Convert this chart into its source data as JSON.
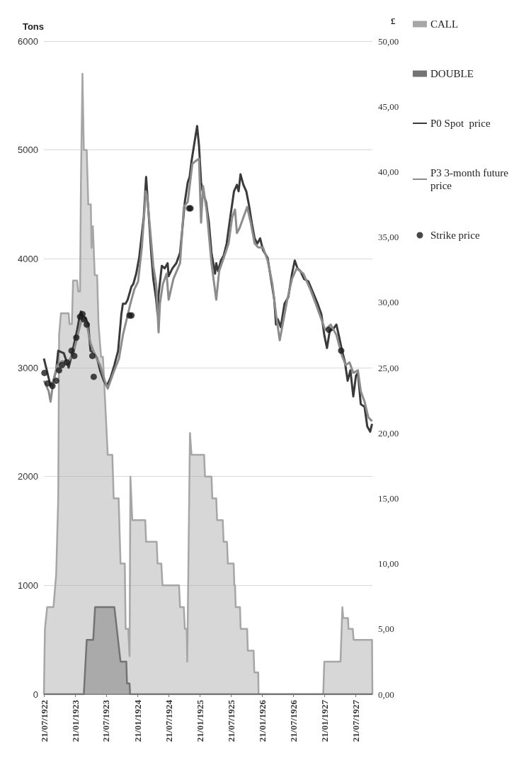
{
  "chart_data": {
    "type": "line",
    "ylabel": "Tons",
    "y2label": "£",
    "grid": "y",
    "legend": "right",
    "xlim": [
      "1922-07-21",
      "1927-10-28"
    ],
    "xticks": [
      {
        "value": "1922-07-21",
        "label": "21/07/1922"
      },
      {
        "value": "1923-01-21",
        "label": "21/01/1923"
      },
      {
        "value": "1923-07-21",
        "label": "21/07/1923"
      },
      {
        "value": "1924-01-21",
        "label": "21/01/1924"
      },
      {
        "value": "1924-07-21",
        "label": "21/07/1924"
      },
      {
        "value": "1925-01-21",
        "label": "21/01/1925"
      },
      {
        "value": "1925-07-21",
        "label": "21/07/1925"
      },
      {
        "value": "1926-01-21",
        "label": "21/01/1926"
      },
      {
        "value": "1926-07-21",
        "label": "21/07/1926"
      },
      {
        "value": "1927-01-21",
        "label": "21/01/1927"
      },
      {
        "value": "1927-07-21",
        "label": "21/07/1927"
      }
    ],
    "ylim": [
      0,
      6000
    ],
    "yticks": [
      0,
      1000,
      2000,
      3000,
      4000,
      5000,
      6000
    ],
    "y2lim": [
      0,
      50
    ],
    "y2ticks": [
      {
        "value": 0,
        "label": "0,00"
      },
      {
        "value": 5,
        "label": "5,00"
      },
      {
        "value": 10,
        "label": "10,00"
      },
      {
        "value": 15,
        "label": "15,00"
      },
      {
        "value": 20,
        "label": "20,00"
      },
      {
        "value": 25,
        "label": "25,00"
      },
      {
        "value": 30,
        "label": "30,00"
      },
      {
        "value": 35,
        "label": "35,00"
      },
      {
        "value": 40,
        "label": "40,00"
      },
      {
        "value": 45,
        "label": "45,00"
      },
      {
        "value": 50,
        "label": "50,00"
      }
    ],
    "series": [
      {
        "name": "CALL",
        "type": "area",
        "color": "#a6a6a6",
        "x": [
          "1922-07-21",
          "1922-07-27",
          "1922-08-09",
          "1922-09-15",
          "1922-10-01",
          "1922-10-13",
          "1922-10-18",
          "1922-10-29",
          "1922-12-13",
          "1922-12-18",
          "1923-01-01",
          "1923-01-08",
          "1923-02-01",
          "1923-02-07",
          "1923-02-18",
          "1923-02-23",
          "1923-03-04",
          "1923-03-12",
          "1923-03-29",
          "1923-04-07",
          "1923-04-22",
          "1923-04-26",
          "1923-05-04",
          "1923-05-15",
          "1923-05-29",
          "1923-06-06",
          "1923-06-21",
          "1923-07-02",
          "1923-07-30",
          "1923-08-26",
          "1923-09-03",
          "1923-10-02",
          "1923-10-13",
          "1923-11-07",
          "1923-11-12",
          "1923-11-27",
          "1923-12-05",
          "1923-12-10",
          "1923-12-21",
          "1924-03-06",
          "1924-03-11",
          "1924-05-12",
          "1924-05-17",
          "1924-06-08",
          "1924-06-15",
          "1924-09-20",
          "1924-09-26",
          "1924-10-18",
          "1924-10-24",
          "1924-11-04",
          "1924-11-07",
          "1924-11-23",
          "1924-12-02",
          "1925-02-14",
          "1925-02-19",
          "1925-03-29",
          "1925-04-03",
          "1925-04-26",
          "1925-05-01",
          "1925-06-03",
          "1925-06-08",
          "1925-06-28",
          "1925-07-03",
          "1925-08-06",
          "1925-08-10",
          "1925-08-14",
          "1925-08-18",
          "1925-09-12",
          "1925-09-16",
          "1925-10-24",
          "1925-10-28",
          "1925-12-01",
          "1925-12-05",
          "1925-12-28",
          "1925-12-30",
          "1927-01-13",
          "1927-01-19",
          "1927-04-24",
          "1927-05-05",
          "1927-05-10",
          "1927-06-07",
          "1927-06-10",
          "1927-07-05",
          "1927-07-10",
          "1927-10-26",
          "1927-10-28"
        ],
        "values": [
          0,
          600,
          800,
          800,
          1100,
          1800,
          3300,
          3500,
          3500,
          3400,
          3400,
          3800,
          3800,
          3700,
          3700,
          4700,
          5700,
          5000,
          5000,
          4500,
          4500,
          4100,
          4300,
          3850,
          3850,
          3400,
          3100,
          3100,
          2200,
          2200,
          1800,
          1800,
          1200,
          1200,
          600,
          600,
          350,
          2000,
          1600,
          1600,
          1400,
          1400,
          1200,
          1200,
          1000,
          1000,
          800,
          800,
          600,
          600,
          300,
          2400,
          2200,
          2200,
          2000,
          2000,
          1800,
          1800,
          1600,
          1600,
          1400,
          1400,
          1200,
          1200,
          1000,
          1000,
          800,
          800,
          600,
          600,
          400,
          400,
          200,
          200,
          0,
          0,
          300,
          300,
          800,
          700,
          700,
          600,
          600,
          500,
          500,
          0
        ]
      },
      {
        "name": "DOUBLE",
        "type": "area",
        "color": "#737373",
        "x": [
          "1922-07-21",
          "1923-03-12",
          "1923-03-29",
          "1923-05-06",
          "1923-05-17",
          "1923-09-07",
          "1923-10-13",
          "1923-11-16",
          "1923-11-20",
          "1923-12-05",
          "1923-12-08",
          "1927-10-28"
        ],
        "values": [
          0,
          0,
          500,
          500,
          800,
          800,
          300,
          300,
          100,
          100,
          0,
          0
        ]
      },
      {
        "name": "P0 Spot  price",
        "axis": "y2",
        "color": "#3a3a3a",
        "x": [
          "1922-07-21",
          "1922-08-07",
          "1922-08-29",
          "1922-09-15",
          "1922-10-01",
          "1922-10-13",
          "1922-11-15",
          "1922-12-13",
          "1922-12-30",
          "1923-01-15",
          "1923-02-01",
          "1923-02-15",
          "1923-02-23",
          "1923-03-07",
          "1923-03-23",
          "1923-04-07",
          "1923-04-20",
          "1923-05-12",
          "1923-05-29",
          "1923-06-15",
          "1923-07-07",
          "1923-07-24",
          "1923-08-15",
          "1923-09-07",
          "1923-09-29",
          "1923-10-18",
          "1923-10-27",
          "1923-11-12",
          "1923-11-24",
          "1923-12-16",
          "1923-12-27",
          "1924-01-13",
          "1924-01-30",
          "1924-02-26",
          "1924-03-11",
          "1924-03-22",
          "1924-04-11",
          "1924-04-22",
          "1924-05-09",
          "1924-05-17",
          "1924-05-23",
          "1924-06-11",
          "1924-06-28",
          "1924-07-15",
          "1924-07-21",
          "1924-08-12",
          "1924-09-04",
          "1924-09-26",
          "1924-10-07",
          "1924-10-24",
          "1924-11-10",
          "1924-11-21",
          "1924-12-02",
          "1924-12-19",
          "1925-01-04",
          "1925-01-15",
          "1925-01-27",
          "1925-02-08",
          "1925-02-25",
          "1925-03-14",
          "1925-03-29",
          "1925-04-19",
          "1925-04-26",
          "1925-05-07",
          "1925-05-23",
          "1925-06-09",
          "1925-06-26",
          "1925-07-17",
          "1925-08-08",
          "1925-08-25",
          "1925-09-04",
          "1925-09-15",
          "1925-10-02",
          "1925-10-19",
          "1925-11-03",
          "1925-11-20",
          "1925-12-07",
          "1925-12-23",
          "1926-01-08",
          "1926-01-25",
          "1926-02-21",
          "1926-03-15",
          "1926-04-01",
          "1926-04-11",
          "1926-04-22",
          "1926-05-09",
          "1926-05-31",
          "1926-06-22",
          "1926-07-14",
          "1926-07-30",
          "1926-08-15",
          "1926-09-01",
          "1926-09-22",
          "1926-10-18",
          "1926-11-19",
          "1926-12-11",
          "1927-01-02",
          "1927-01-19",
          "1927-02-04",
          "1927-02-21",
          "1927-03-09",
          "1927-03-31",
          "1927-04-17",
          "1927-05-03",
          "1927-05-19",
          "1927-06-05",
          "1927-06-21",
          "1927-07-08",
          "1927-07-24",
          "1927-08-04",
          "1927-08-21",
          "1927-09-12",
          "1927-09-28",
          "1927-10-15",
          "1927-10-26"
        ],
        "values": [
          25.7,
          24.8,
          23.6,
          24.0,
          24.8,
          26.3,
          26.1,
          25.0,
          25.9,
          26.9,
          27.9,
          28.9,
          29.3,
          28.9,
          28.8,
          28.3,
          26.3,
          26.1,
          25.7,
          24.8,
          24.0,
          23.6,
          24.2,
          25.2,
          26.3,
          29.1,
          29.9,
          29.9,
          30.2,
          31.2,
          31.4,
          32.2,
          33.4,
          36.5,
          39.6,
          37.5,
          33.6,
          31.8,
          30.2,
          29.1,
          30.6,
          32.8,
          32.6,
          33.0,
          32.0,
          32.6,
          33.0,
          33.8,
          35.3,
          37.7,
          39.2,
          39.6,
          40.8,
          42.2,
          43.5,
          42.0,
          39.2,
          38.3,
          37.7,
          36.1,
          33.8,
          32.2,
          33.0,
          32.4,
          33.2,
          33.6,
          34.5,
          36.5,
          38.5,
          39.0,
          38.5,
          39.8,
          39.0,
          38.5,
          37.5,
          36.1,
          34.9,
          34.5,
          34.9,
          34.0,
          33.4,
          31.6,
          30.2,
          28.3,
          28.7,
          28.1,
          29.9,
          30.4,
          32.2,
          33.2,
          32.6,
          32.4,
          31.8,
          31.6,
          30.6,
          29.9,
          29.1,
          27.5,
          26.5,
          27.9,
          27.9,
          28.3,
          27.3,
          26.3,
          25.5,
          24.0,
          24.8,
          22.8,
          24.4,
          24.6,
          22.2,
          22.0,
          20.5,
          20.1,
          20.7
        ]
      },
      {
        "name": "P3 3-month future price",
        "axis": "y2",
        "color": "#8c8c8c",
        "x": [
          "1922-07-21",
          "1922-08-18",
          "1922-08-29",
          "1922-09-15",
          "1922-10-07",
          "1922-11-04",
          "1922-12-07",
          "1923-01-10",
          "1923-02-12",
          "1923-03-04",
          "1923-03-29",
          "1923-04-20",
          "1923-05-18",
          "1923-06-15",
          "1923-07-13",
          "1923-07-30",
          "1923-09-01",
          "1923-10-04",
          "1923-10-27",
          "1923-11-18",
          "1923-12-10",
          "1924-01-02",
          "1924-01-24",
          "1924-02-15",
          "1924-03-09",
          "1924-03-17",
          "1924-03-31",
          "1924-04-22",
          "1924-05-09",
          "1924-05-23",
          "1924-05-31",
          "1924-06-17",
          "1924-07-09",
          "1924-07-21",
          "1924-08-18",
          "1924-09-26",
          "1924-10-18",
          "1924-11-10",
          "1924-12-07",
          "1924-12-24",
          "1925-01-15",
          "1925-01-27",
          "1925-02-08",
          "1925-03-02",
          "1925-03-29",
          "1925-04-26",
          "1925-05-13",
          "1925-06-09",
          "1925-07-07",
          "1925-07-28",
          "1925-08-14",
          "1925-08-25",
          "1925-09-10",
          "1925-10-02",
          "1925-10-24",
          "1925-11-14",
          "1925-12-07",
          "1925-12-28",
          "1926-01-25",
          "1926-02-21",
          "1926-03-21",
          "1926-04-11",
          "1926-05-03",
          "1926-05-20",
          "1926-06-16",
          "1926-07-14",
          "1926-08-10",
          "1926-09-18",
          "1926-10-29",
          "1926-11-30",
          "1927-01-02",
          "1927-01-24",
          "1927-02-26",
          "1927-03-31",
          "1927-05-03",
          "1927-05-25",
          "1927-06-16",
          "1927-07-08",
          "1927-08-04",
          "1927-08-21",
          "1927-09-12",
          "1927-10-04",
          "1927-10-26"
        ],
        "values": [
          24.0,
          23.2,
          22.4,
          24.0,
          25.2,
          25.5,
          25.4,
          26.1,
          27.9,
          28.9,
          28.3,
          26.9,
          25.9,
          25.2,
          24.0,
          23.4,
          24.6,
          25.7,
          27.5,
          28.7,
          29.9,
          31.0,
          31.6,
          34.2,
          38.5,
          38.1,
          36.1,
          32.8,
          31.4,
          27.7,
          29.9,
          31.4,
          32.2,
          30.2,
          31.8,
          33.0,
          37.3,
          37.7,
          40.6,
          40.8,
          41.0,
          36.1,
          38.9,
          36.9,
          33.0,
          30.2,
          32.4,
          33.4,
          34.5,
          36.5,
          37.1,
          35.3,
          35.7,
          36.5,
          37.3,
          36.1,
          34.5,
          34.2,
          34.2,
          33.2,
          31.4,
          29.1,
          27.1,
          28.3,
          30.2,
          31.8,
          32.6,
          32.2,
          31.0,
          29.9,
          28.7,
          27.9,
          28.3,
          27.5,
          25.9,
          25.2,
          25.4,
          24.6,
          24.8,
          23.2,
          22.4,
          21.2,
          20.9
        ]
      },
      {
        "name": "Strike price",
        "type": "scatter",
        "axis": "y2",
        "color": "#1a1a1a",
        "marker": "circle",
        "x": [
          "1922-07-24",
          "1922-08-12",
          "1922-09-09",
          "1922-10-01",
          "1922-10-18",
          "1922-11-04",
          "1922-12-02",
          "1922-12-30",
          "1923-01-15",
          "1923-01-27",
          "1923-02-18",
          "1923-03-04",
          "1923-03-12",
          "1923-03-29",
          "1923-05-01",
          "1923-05-09",
          "1923-12-05",
          "1923-12-16",
          "1924-11-18",
          "1924-11-26",
          "1927-02-15",
          "1927-04-28"
        ],
        "values": [
          24.6,
          23.8,
          23.6,
          24.0,
          24.8,
          25.2,
          25.4,
          26.3,
          25.9,
          27.3,
          28.9,
          29.1,
          28.7,
          28.3,
          25.9,
          24.3,
          29.0,
          29.0,
          37.2,
          37.2,
          27.9,
          26.3
        ]
      }
    ]
  }
}
